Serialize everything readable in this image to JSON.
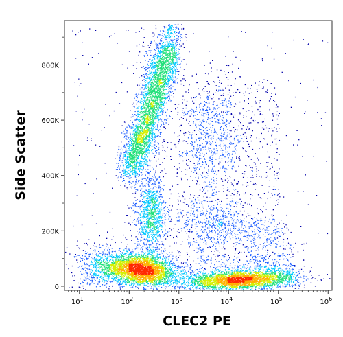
{
  "chart_data": {
    "type": "scatter",
    "style": "flow-cytometry density dot plot",
    "title": "",
    "xlabel": "CLEC2 PE",
    "ylabel": "Side Scatter",
    "x_scale": "log",
    "xlim": [
      5,
      1200000
    ],
    "ylim": [
      -15000,
      960000
    ],
    "x_ticks": [
      {
        "value": 10,
        "base": "10",
        "exp": "1"
      },
      {
        "value": 100,
        "base": "10",
        "exp": "2"
      },
      {
        "value": 1000,
        "base": "10",
        "exp": "3"
      },
      {
        "value": 10000,
        "base": "10",
        "exp": "4"
      },
      {
        "value": 100000,
        "base": "10",
        "exp": "5"
      },
      {
        "value": 1000000,
        "base": "10",
        "exp": "6"
      }
    ],
    "y_ticks": [
      {
        "value": 0,
        "label": "0"
      },
      {
        "value": 200000,
        "label": "200K"
      },
      {
        "value": 400000,
        "label": "400K"
      },
      {
        "value": 600000,
        "label": "600K"
      },
      {
        "value": 800000,
        "label": "800K"
      }
    ],
    "density_colors": [
      "#0000aa",
      "#1f5fff",
      "#00c8ff",
      "#22e07a",
      "#d4f000",
      "#ffb000",
      "#ff2a00"
    ],
    "populations": [
      {
        "x_center": 300,
        "y_center": 50000,
        "density": "high"
      },
      {
        "x_center": 25000,
        "y_center": 25000,
        "density": "high"
      },
      {
        "x_center": 400,
        "y_center": 530000,
        "density": "high"
      },
      {
        "x_center": 420,
        "y_center": 220000,
        "density": "medium"
      },
      {
        "x_center": 6000,
        "y_center": 560000,
        "density": "low"
      }
    ],
    "grid": false,
    "legend": "none"
  }
}
